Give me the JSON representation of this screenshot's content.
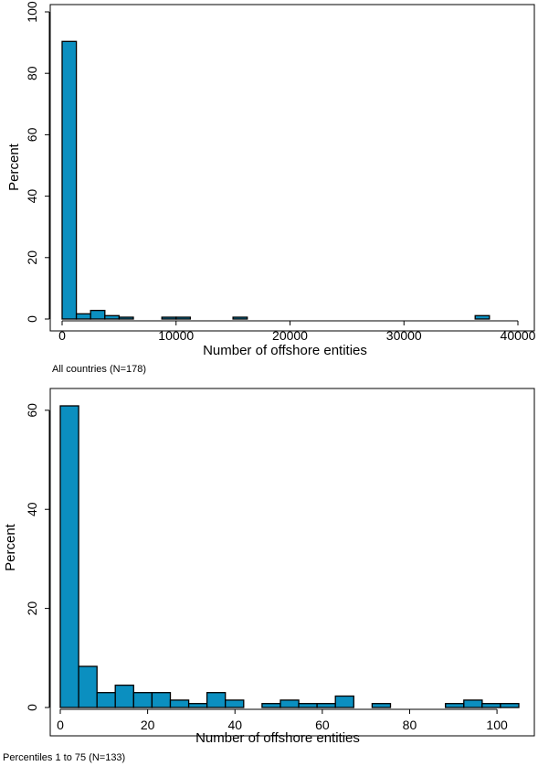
{
  "bar_color": "#0b8fc0",
  "chart_data": [
    {
      "type": "bar",
      "subtype": "histogram",
      "xlabel": "Number of offshore entities",
      "ylabel": "Percent",
      "note": "All countries (N=178)",
      "xlim": [
        0,
        40000
      ],
      "ylim": [
        0,
        100
      ],
      "xticks": [
        0,
        10000,
        20000,
        30000,
        40000
      ],
      "yticks": [
        0,
        20,
        40,
        60,
        80,
        100
      ],
      "bin_width": 1250,
      "bins": [
        {
          "x0": 0,
          "x1": 1250,
          "value": 90.4
        },
        {
          "x0": 1250,
          "x1": 2500,
          "value": 1.7
        },
        {
          "x0": 2500,
          "x1": 3750,
          "value": 2.8
        },
        {
          "x0": 3750,
          "x1": 5000,
          "value": 1.1
        },
        {
          "x0": 5000,
          "x1": 6250,
          "value": 0.6
        },
        {
          "x0": 8750,
          "x1": 10000,
          "value": 0.6
        },
        {
          "x0": 10000,
          "x1": 11250,
          "value": 0.6
        },
        {
          "x0": 15000,
          "x1": 16250,
          "value": 0.6
        },
        {
          "x0": 36250,
          "x1": 37500,
          "value": 1.1
        }
      ],
      "grid": false
    },
    {
      "type": "bar",
      "subtype": "histogram",
      "xlabel": "Number of offshore entities",
      "ylabel": "Percent",
      "note": "Percentiles 1 to 75 (N=133)",
      "xlim": [
        0,
        105
      ],
      "ylim": [
        0,
        62
      ],
      "xticks": [
        0,
        20,
        40,
        60,
        80,
        100
      ],
      "yticks": [
        0,
        20,
        40,
        60
      ],
      "bin_width": 4.2,
      "bins": [
        {
          "x0": 0,
          "x1": 4.2,
          "value": 60.9
        },
        {
          "x0": 4.2,
          "x1": 8.4,
          "value": 8.3
        },
        {
          "x0": 8.4,
          "x1": 12.6,
          "value": 3.0
        },
        {
          "x0": 12.6,
          "x1": 16.8,
          "value": 4.5
        },
        {
          "x0": 16.8,
          "x1": 21.0,
          "value": 3.0
        },
        {
          "x0": 21.0,
          "x1": 25.2,
          "value": 3.0
        },
        {
          "x0": 25.2,
          "x1": 29.4,
          "value": 1.5
        },
        {
          "x0": 29.4,
          "x1": 33.6,
          "value": 0.8
        },
        {
          "x0": 33.6,
          "x1": 37.8,
          "value": 3.0
        },
        {
          "x0": 37.8,
          "x1": 42.0,
          "value": 1.5
        },
        {
          "x0": 46.2,
          "x1": 50.4,
          "value": 0.8
        },
        {
          "x0": 50.4,
          "x1": 54.6,
          "value": 1.5
        },
        {
          "x0": 54.6,
          "x1": 58.8,
          "value": 0.8
        },
        {
          "x0": 58.8,
          "x1": 63.0,
          "value": 0.8
        },
        {
          "x0": 63.0,
          "x1": 67.2,
          "value": 2.3
        },
        {
          "x0": 71.4,
          "x1": 75.6,
          "value": 0.8
        },
        {
          "x0": 88.2,
          "x1": 92.4,
          "value": 0.8
        },
        {
          "x0": 92.4,
          "x1": 96.6,
          "value": 1.5
        },
        {
          "x0": 96.6,
          "x1": 100.8,
          "value": 0.8
        },
        {
          "x0": 100.8,
          "x1": 105.0,
          "value": 0.8
        }
      ],
      "grid": false
    }
  ]
}
